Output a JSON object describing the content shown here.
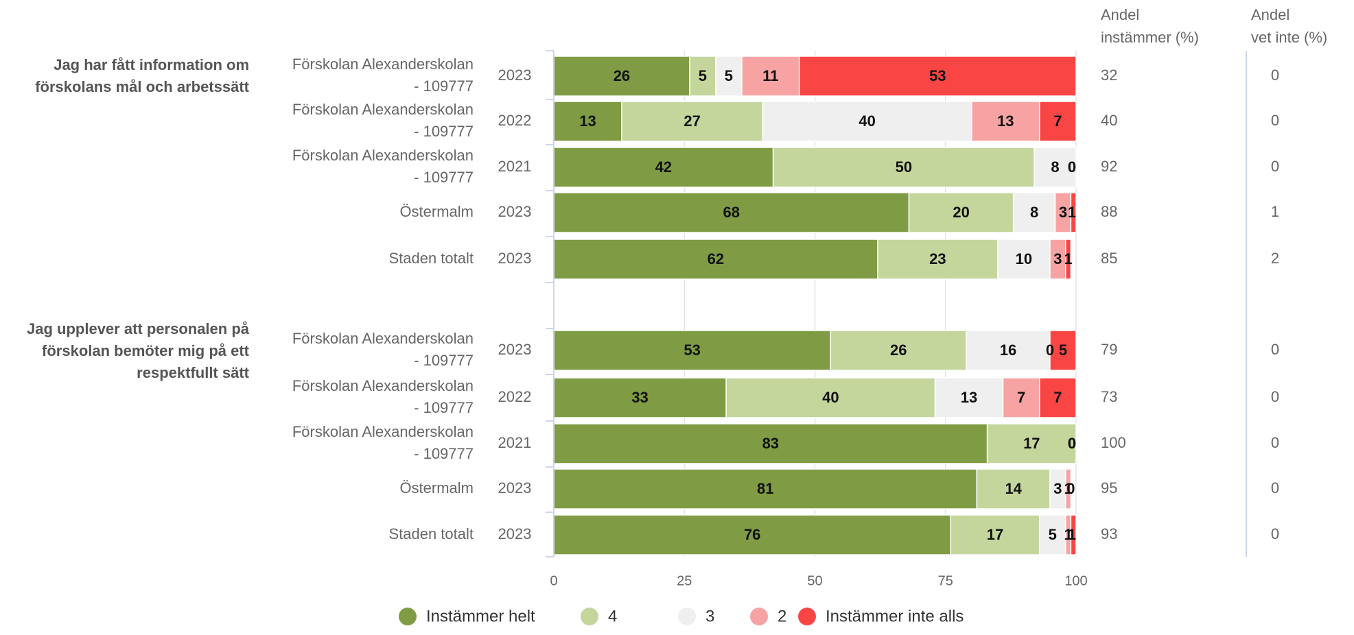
{
  "chart_data": {
    "type": "bar",
    "orientation": "horizontal",
    "stacked": true,
    "xlim": [
      0,
      100
    ],
    "xticks": [
      0,
      25,
      50,
      75,
      100
    ],
    "grid": true,
    "legend_position": "bottom",
    "column_headers": {
      "agree_line1": "Andel",
      "agree_line2": "instämmer (%)",
      "dontknow_line1": "Andel",
      "dontknow_line2": "vet inte (%)"
    },
    "series": [
      {
        "name": "Instämmer helt",
        "color": "#7f9c44"
      },
      {
        "name": "4",
        "color": "#c4d69c"
      },
      {
        "name": "3",
        "color": "#efefef"
      },
      {
        "name": "2",
        "color": "#f7a3a3"
      },
      {
        "name": "Instämmer inte alls",
        "color": "#fa4545"
      }
    ],
    "groups": [
      {
        "question_lines": [
          "Jag har fått information om",
          "förskolans mål och arbetssätt"
        ],
        "rows": [
          {
            "entity_lines": [
              "Förskolan Alexanderskolan",
              "- 109777"
            ],
            "year": "2023",
            "values": [
              26,
              5,
              5,
              11,
              53
            ],
            "agree": "32",
            "dontknow": "0"
          },
          {
            "entity_lines": [
              "Förskolan Alexanderskolan",
              "- 109777"
            ],
            "year": "2022",
            "values": [
              13,
              27,
              40,
              13,
              7
            ],
            "agree": "40",
            "dontknow": "0"
          },
          {
            "entity_lines": [
              "Förskolan Alexanderskolan",
              "- 109777"
            ],
            "year": "2021",
            "values": [
              42,
              50,
              8,
              0,
              0
            ],
            "agree": "92",
            "dontknow": "0"
          },
          {
            "entity_lines": [
              "Östermalm"
            ],
            "year": "2023",
            "values": [
              68,
              20,
              8,
              3,
              1
            ],
            "agree": "88",
            "dontknow": "1"
          },
          {
            "entity_lines": [
              "Staden totalt"
            ],
            "year": "2023",
            "values": [
              62,
              23,
              10,
              3,
              1
            ],
            "agree": "85",
            "dontknow": "2"
          }
        ]
      },
      {
        "question_lines": [
          "Jag upplever att personalen på",
          "förskolan bemöter mig på ett",
          "respektfullt sätt"
        ],
        "rows": [
          {
            "entity_lines": [
              "Förskolan Alexanderskolan",
              "- 109777"
            ],
            "year": "2023",
            "values": [
              53,
              26,
              16,
              0,
              5
            ],
            "agree": "79",
            "dontknow": "0"
          },
          {
            "entity_lines": [
              "Förskolan Alexanderskolan",
              "- 109777"
            ],
            "year": "2022",
            "values": [
              33,
              40,
              13,
              7,
              7
            ],
            "agree": "73",
            "dontknow": "0"
          },
          {
            "entity_lines": [
              "Förskolan Alexanderskolan",
              "- 109777"
            ],
            "year": "2021",
            "values": [
              83,
              17,
              0,
              0,
              0
            ],
            "agree": "100",
            "dontknow": "0"
          },
          {
            "entity_lines": [
              "Östermalm"
            ],
            "year": "2023",
            "values": [
              81,
              14,
              3,
              1,
              0
            ],
            "agree": "95",
            "dontknow": "0"
          },
          {
            "entity_lines": [
              "Staden totalt"
            ],
            "year": "2023",
            "values": [
              76,
              17,
              5,
              1,
              1
            ],
            "agree": "93",
            "dontknow": "0"
          }
        ]
      }
    ]
  }
}
